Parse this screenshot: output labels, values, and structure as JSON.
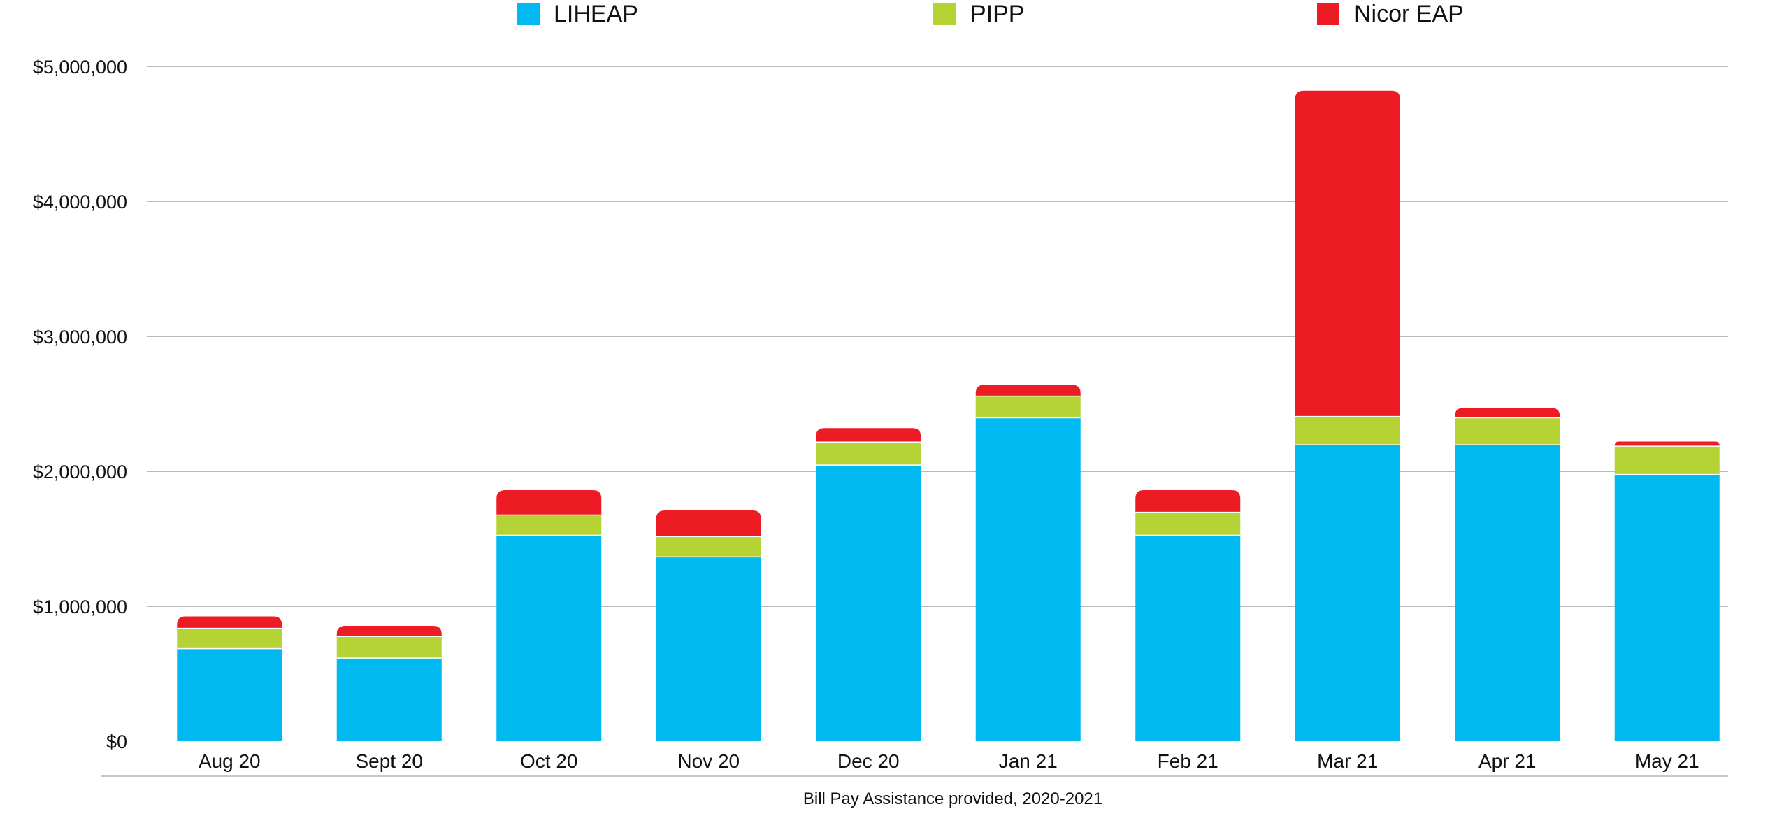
{
  "chart_data": {
    "type": "bar",
    "stacked": true,
    "categories": [
      "Aug 20",
      "Sept 20",
      "Oct 20",
      "Nov 20",
      "Dec 20",
      "Jan 21",
      "Feb 21",
      "Mar 21",
      "Apr 21",
      "May 21"
    ],
    "series": [
      {
        "name": "LIHEAP",
        "color": "#00B9F0",
        "values": [
          690000,
          620000,
          1530000,
          1370000,
          2050000,
          2400000,
          1530000,
          2200000,
          2200000,
          1980000
        ]
      },
      {
        "name": "PIPP",
        "color": "#B5D334",
        "values": [
          150000,
          160000,
          150000,
          150000,
          170000,
          160000,
          170000,
          210000,
          200000,
          210000
        ]
      },
      {
        "name": "Nicor EAP",
        "color": "#ED1C24",
        "values": [
          85000,
          75000,
          180000,
          190000,
          100000,
          80000,
          160000,
          2410000,
          70000,
          30000
        ]
      }
    ],
    "ylim": [
      0,
      5000000
    ],
    "yticks": [
      0,
      1000000,
      2000000,
      3000000,
      4000000,
      5000000
    ],
    "ytick_labels": [
      "$0",
      "$1,000,000",
      "$2,000,000",
      "$3,000,000",
      "$4,000,000",
      "$5,000,000"
    ],
    "grid": true,
    "legend_position": "top",
    "caption": "Bill Pay Assistance provided, 2020-2021"
  }
}
